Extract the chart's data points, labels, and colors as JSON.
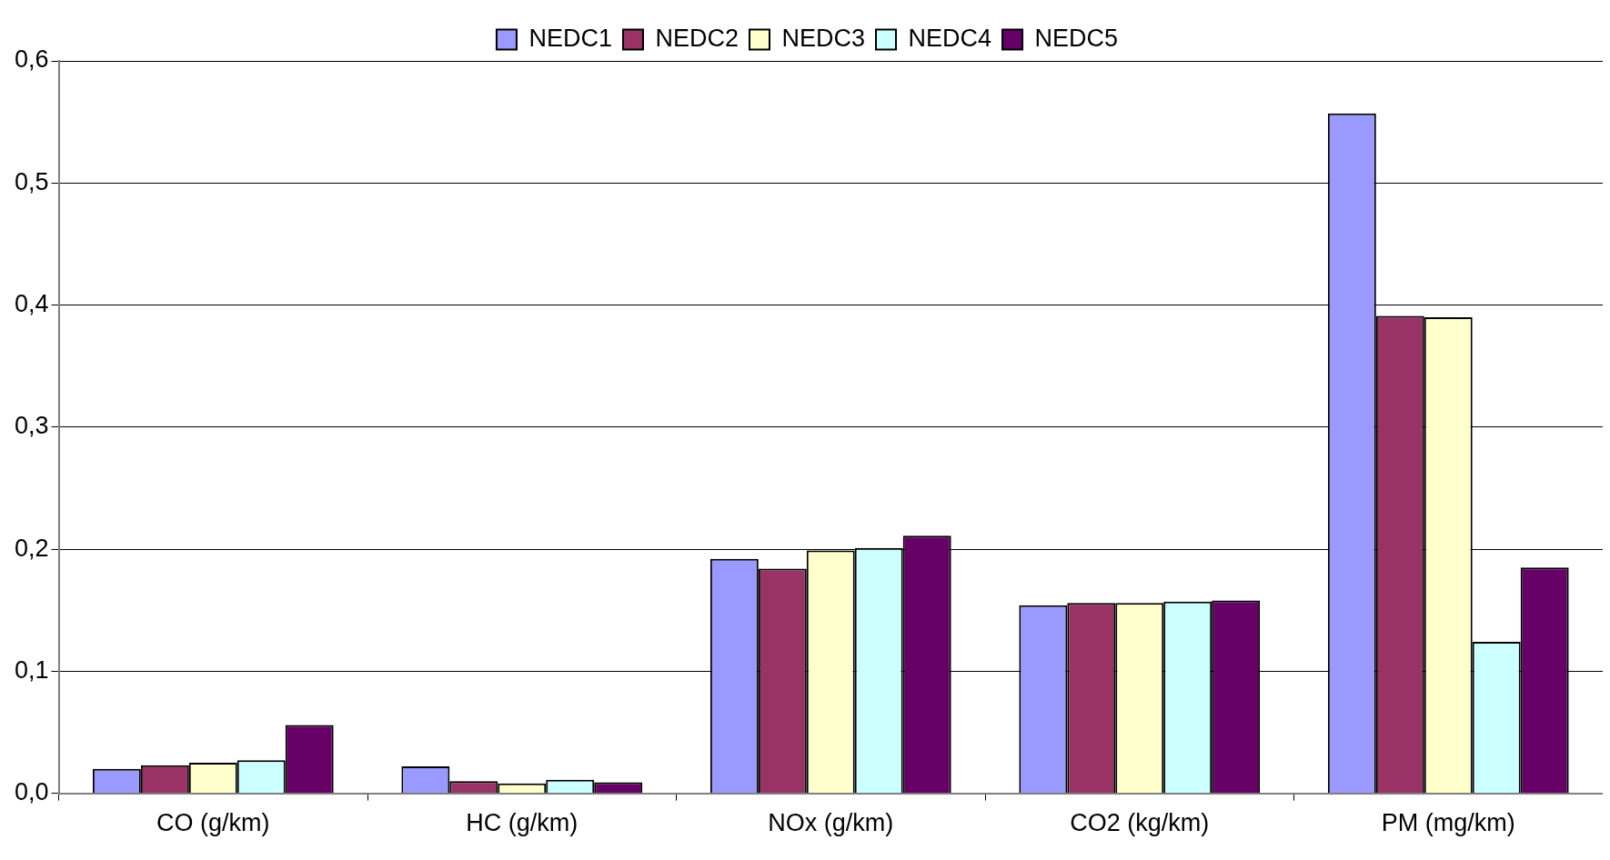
{
  "chart_data": {
    "type": "bar",
    "categories": [
      "CO (g/km)",
      "HC (g/km)",
      "NOx (g/km)",
      "CO2 (kg/km)",
      "PM (mg/km)"
    ],
    "series": [
      {
        "name": "NEDC1",
        "color": "#9999ff",
        "values": [
          0.02,
          0.022,
          0.192,
          0.154,
          0.557
        ]
      },
      {
        "name": "NEDC2",
        "color": "#993366",
        "values": [
          0.023,
          0.01,
          0.184,
          0.156,
          0.391
        ]
      },
      {
        "name": "NEDC3",
        "color": "#ffffcc",
        "values": [
          0.025,
          0.008,
          0.199,
          0.156,
          0.39
        ]
      },
      {
        "name": "NEDC4",
        "color": "#ccffff",
        "values": [
          0.027,
          0.011,
          0.201,
          0.157,
          0.124
        ]
      },
      {
        "name": "NEDC5",
        "color": "#660066",
        "values": [
          0.056,
          0.009,
          0.211,
          0.158,
          0.185
        ]
      }
    ],
    "ylim": [
      0,
      0.6
    ],
    "yticks": [
      {
        "value": 0,
        "label": "0,0"
      },
      {
        "value": 0.1,
        "label": "0,1"
      },
      {
        "value": 0.2,
        "label": "0,2"
      },
      {
        "value": 0.3,
        "label": "0,3"
      },
      {
        "value": 0.4,
        "label": "0,4"
      },
      {
        "value": 0.5,
        "label": "0,5"
      },
      {
        "value": 0.6,
        "label": "0,6"
      }
    ],
    "grid": "y",
    "legend": "top"
  }
}
